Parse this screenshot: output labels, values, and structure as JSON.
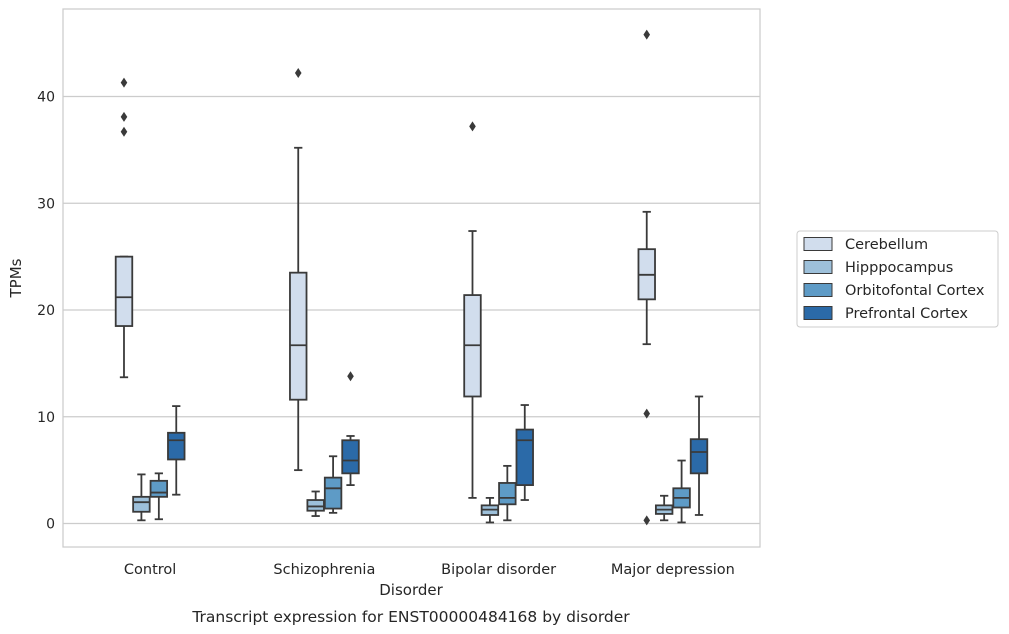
{
  "chart_data": {
    "type": "box",
    "title": "",
    "caption": "Transcript expression for ENST00000484168 by disorder",
    "xlabel": "Disorder",
    "ylabel": "TPMs",
    "ylim": [
      -2.2,
      48.2
    ],
    "yticks": [
      0,
      10,
      20,
      30,
      40
    ],
    "grid": "y",
    "legend_position": "right",
    "categories": [
      "Control",
      "Schizophrenia",
      "Bipolar disorder",
      "Major depression"
    ],
    "series": [
      {
        "name": "Cerebellum",
        "color": "#d1dded",
        "boxes": [
          {
            "whisker_low": 13.7,
            "q1": 18.5,
            "median": 21.2,
            "q3": 25.0,
            "whisker_high": 25.0,
            "outliers": [
              41.3,
              38.1,
              36.7
            ]
          },
          {
            "whisker_low": 5.0,
            "q1": 11.6,
            "median": 16.7,
            "q3": 23.5,
            "whisker_high": 35.2,
            "outliers": [
              42.2
            ]
          },
          {
            "whisker_low": 2.4,
            "q1": 11.9,
            "median": 16.7,
            "q3": 21.4,
            "whisker_high": 27.4,
            "outliers": [
              37.2
            ]
          },
          {
            "whisker_low": 16.8,
            "q1": 21.0,
            "median": 23.3,
            "q3": 25.7,
            "whisker_high": 29.2,
            "outliers": [
              45.8,
              10.3,
              0.3
            ]
          }
        ]
      },
      {
        "name": "Hipppocampus",
        "color": "#9dc0da",
        "boxes": [
          {
            "whisker_low": 0.3,
            "q1": 1.1,
            "median": 2.0,
            "q3": 2.5,
            "whisker_high": 4.6,
            "outliers": []
          },
          {
            "whisker_low": 0.7,
            "q1": 1.2,
            "median": 1.6,
            "q3": 2.2,
            "whisker_high": 3.0,
            "outliers": []
          },
          {
            "whisker_low": 0.1,
            "q1": 0.8,
            "median": 1.3,
            "q3": 1.7,
            "whisker_high": 2.4,
            "outliers": []
          },
          {
            "whisker_low": 0.3,
            "q1": 0.9,
            "median": 1.3,
            "q3": 1.7,
            "whisker_high": 2.6,
            "outliers": []
          }
        ]
      },
      {
        "name": "Orbitofontal Cortex",
        "color": "#5e9bc6",
        "boxes": [
          {
            "whisker_low": 0.4,
            "q1": 2.5,
            "median": 2.9,
            "q3": 4.0,
            "whisker_high": 4.7,
            "outliers": []
          },
          {
            "whisker_low": 1.0,
            "q1": 1.4,
            "median": 3.3,
            "q3": 4.3,
            "whisker_high": 6.3,
            "outliers": []
          },
          {
            "whisker_low": 0.3,
            "q1": 1.8,
            "median": 2.4,
            "q3": 3.8,
            "whisker_high": 5.4,
            "outliers": []
          },
          {
            "whisker_low": 0.1,
            "q1": 1.5,
            "median": 2.4,
            "q3": 3.3,
            "whisker_high": 5.9,
            "outliers": []
          }
        ]
      },
      {
        "name": "Prefrontal Cortex",
        "color": "#2b6aa8",
        "boxes": [
          {
            "whisker_low": 2.7,
            "q1": 6.0,
            "median": 7.8,
            "q3": 8.5,
            "whisker_high": 11.0,
            "outliers": []
          },
          {
            "whisker_low": 3.6,
            "q1": 4.7,
            "median": 5.9,
            "q3": 7.8,
            "whisker_high": 8.2,
            "outliers": [
              13.8
            ]
          },
          {
            "whisker_low": 2.2,
            "q1": 3.6,
            "median": 7.8,
            "q3": 8.8,
            "whisker_high": 11.1,
            "outliers": []
          },
          {
            "whisker_low": 0.8,
            "q1": 4.7,
            "median": 6.7,
            "q3": 7.9,
            "whisker_high": 11.9,
            "outliers": []
          }
        ]
      }
    ]
  }
}
